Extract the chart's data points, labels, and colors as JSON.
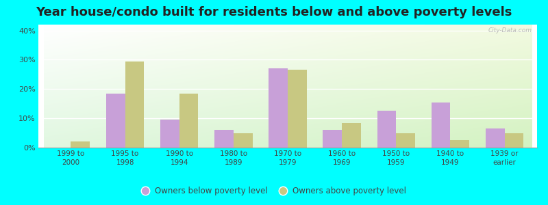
{
  "title": "Year house/condo built for residents below and above poverty levels",
  "categories": [
    "1999 to\n2000",
    "1995 to\n1998",
    "1990 to\n1994",
    "1980 to\n1989",
    "1970 to\n1979",
    "1960 to\n1969",
    "1950 to\n1959",
    "1940 to\n1949",
    "1939 or\nearlier"
  ],
  "below_poverty": [
    0,
    18.5,
    9.5,
    6.0,
    27.0,
    6.0,
    12.5,
    15.5,
    6.5
  ],
  "above_poverty": [
    2.0,
    29.5,
    18.5,
    5.0,
    26.5,
    8.5,
    5.0,
    2.5,
    5.0
  ],
  "below_color": "#c8a0d8",
  "above_color": "#c8c882",
  "ylim": [
    0,
    42
  ],
  "yticks": [
    0,
    10,
    20,
    30,
    40
  ],
  "ytick_labels": [
    "0%",
    "10%",
    "20%",
    "30%",
    "40%"
  ],
  "legend_below": "Owners below poverty level",
  "legend_above": "Owners above poverty level",
  "bg_outer": "#00ffff",
  "title_fontsize": 13,
  "bar_width": 0.35
}
